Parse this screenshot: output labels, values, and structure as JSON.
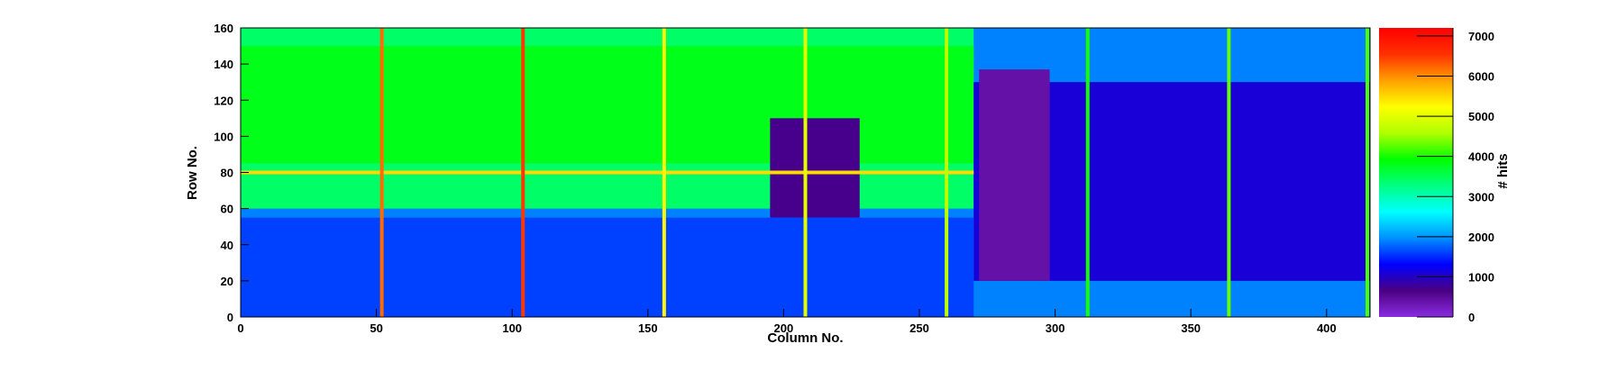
{
  "chart_data": {
    "type": "heatmap",
    "title": "",
    "xlabel": "Column No.",
    "ylabel": "Row No.",
    "zlabel": "# hits",
    "xlim": [
      0,
      416
    ],
    "ylim": [
      0,
      160
    ],
    "zlim": [
      0,
      7200
    ],
    "x_ticks": [
      0,
      50,
      100,
      150,
      200,
      250,
      300,
      350,
      400
    ],
    "y_ticks": [
      0,
      20,
      40,
      60,
      80,
      100,
      120,
      140,
      160
    ],
    "z_ticks": [
      0,
      1000,
      2000,
      3000,
      4000,
      5000,
      6000,
      7000
    ],
    "colormap": [
      "#8a2be2",
      "#4b0082",
      "#0000ff",
      "#0090ff",
      "#00ffff",
      "#00ff80",
      "#00ff00",
      "#b0ff00",
      "#ffff00",
      "#ffa000",
      "#ff3000",
      "#ff0000"
    ],
    "regions": [
      {
        "x": [
          0,
          416
        ],
        "y": [
          0,
          160
        ],
        "hits": 1900
      },
      {
        "x": [
          0,
          270
        ],
        "y": [
          60,
          160
        ],
        "hits": 3400
      },
      {
        "x": [
          0,
          270
        ],
        "y": [
          85,
          150
        ],
        "hits": 3800
      },
      {
        "x": [
          270,
          416
        ],
        "y": [
          20,
          130
        ],
        "hits": 1100
      },
      {
        "x": [
          272,
          298
        ],
        "y": [
          20,
          137
        ],
        "hits": 400
      },
      {
        "x": [
          195,
          228
        ],
        "y": [
          55,
          110
        ],
        "hits": 700
      },
      {
        "x": [
          0,
          270
        ],
        "y": [
          0,
          55
        ],
        "hits": 1600
      }
    ],
    "hot_columns": [
      {
        "x": 52,
        "hits": 6200
      },
      {
        "x": 104,
        "hits": 6500
      },
      {
        "x": 156,
        "hits": 5300
      },
      {
        "x": 208,
        "hits": 5000
      },
      {
        "x": 260,
        "hits": 4700
      },
      {
        "x": 312,
        "hits": 4000
      },
      {
        "x": 364,
        "hits": 4300
      },
      {
        "x": 415,
        "hits": 4200
      }
    ],
    "hot_rows": [
      {
        "y": 80,
        "x": [
          0,
          270
        ],
        "hits": 5500
      }
    ]
  }
}
